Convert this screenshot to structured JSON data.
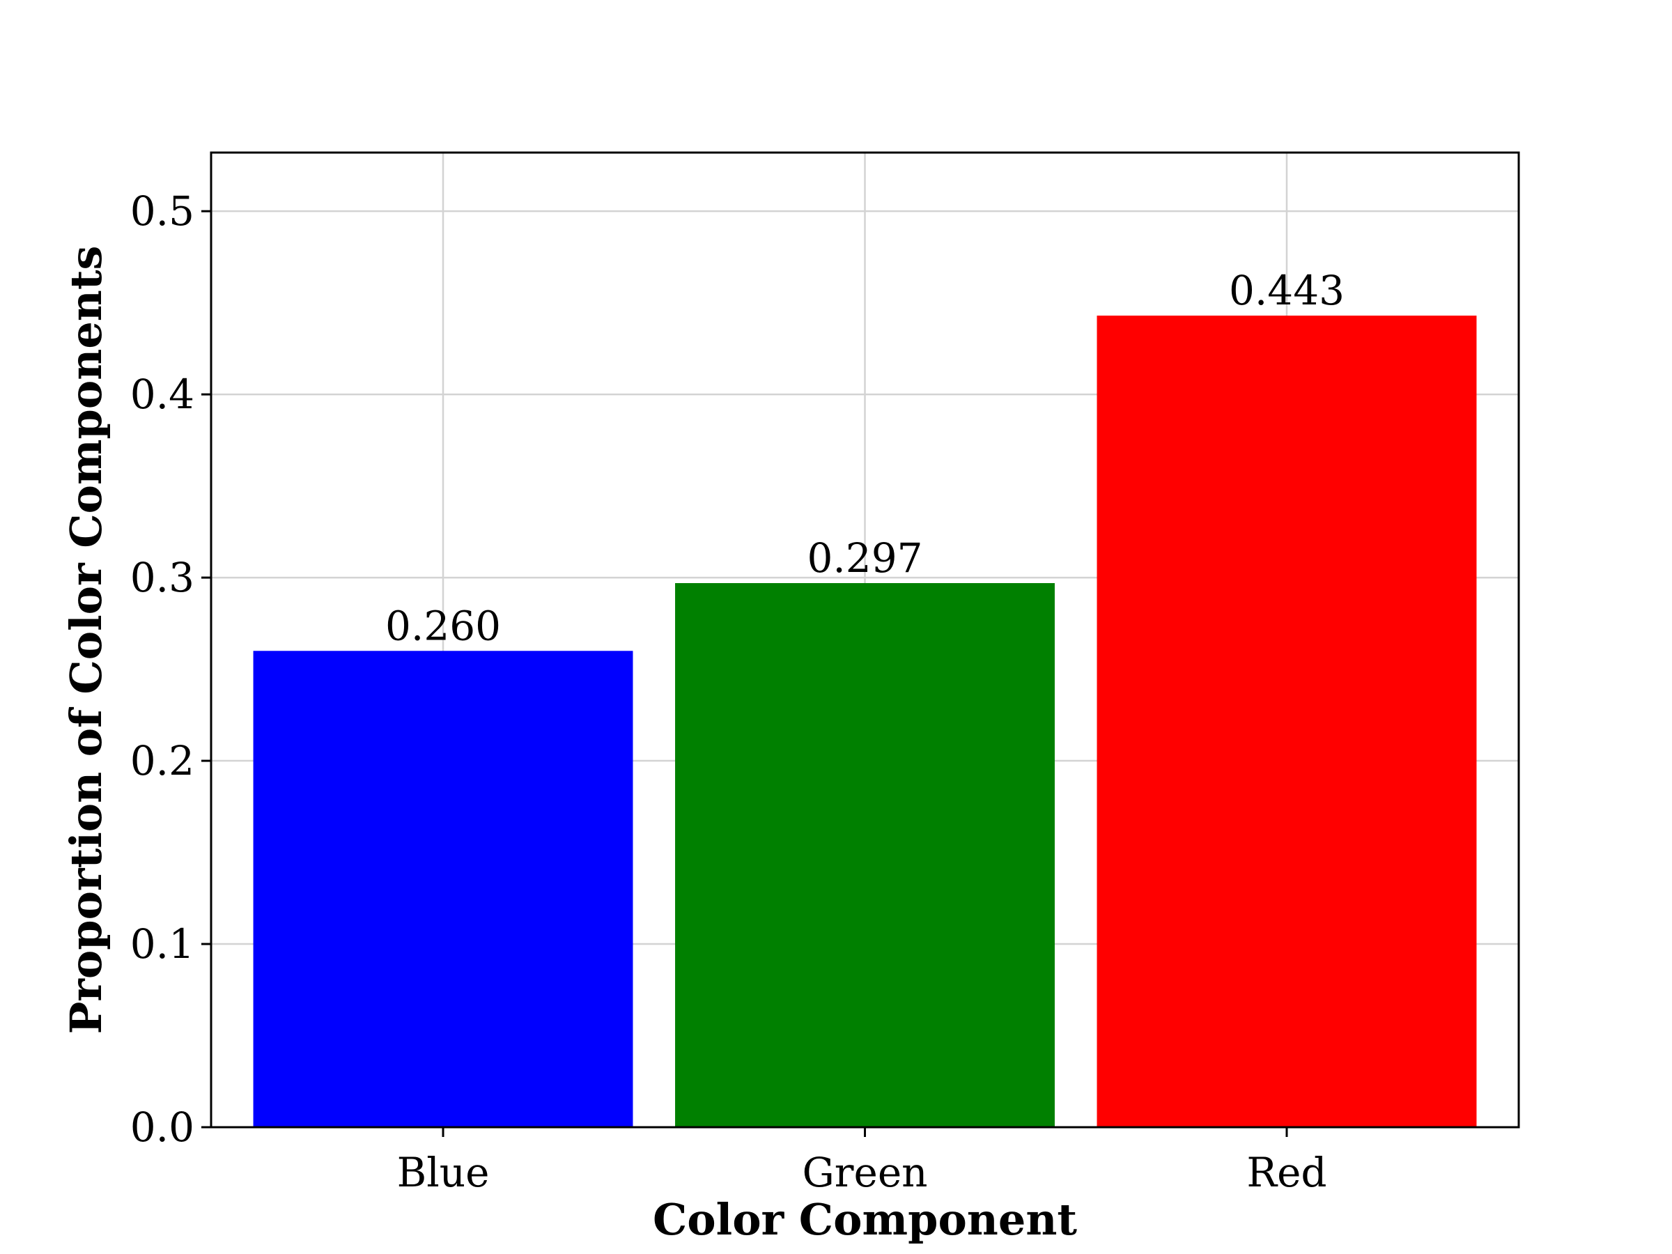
{
  "chart_data": {
    "type": "bar",
    "title": "",
    "xlabel": "Color Component",
    "ylabel": "Proportion of Color Components",
    "categories": [
      "Blue",
      "Green",
      "Red"
    ],
    "values": [
      0.26,
      0.297,
      0.443
    ],
    "value_labels": [
      "0.260",
      "0.297",
      "0.443"
    ],
    "colors": [
      "#0000ff",
      "#008000",
      "#ff0000"
    ],
    "ylim": [
      0,
      0.532
    ],
    "yticks": [
      0.0,
      0.1,
      0.2,
      0.3,
      0.4,
      0.5
    ],
    "ytick_labels": [
      "0.0",
      "0.1",
      "0.2",
      "0.3",
      "0.4",
      "0.5"
    ],
    "grid": true,
    "legend": "none"
  }
}
